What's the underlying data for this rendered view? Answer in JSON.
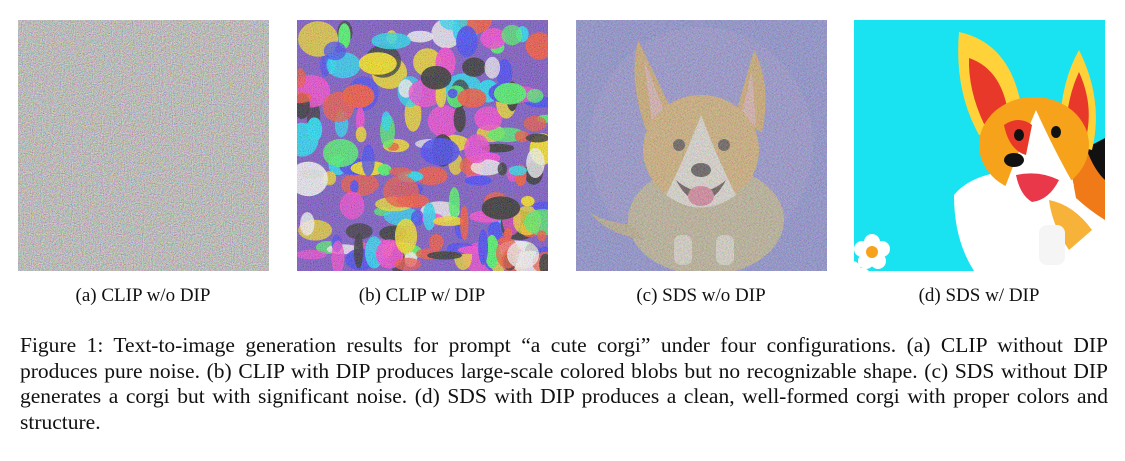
{
  "figure": {
    "panels": [
      {
        "label": "(a) CLIP w/o DIP",
        "image_name": "clip-without-dip-noise-image"
      },
      {
        "label": "(b) CLIP w/ DIP",
        "image_name": "clip-with-dip-blobs-image"
      },
      {
        "label": "(c) SDS w/o DIP",
        "image_name": "sds-without-dip-noisy-corgi-image"
      },
      {
        "label": "(d) SDS w/ DIP",
        "image_name": "sds-with-dip-clean-corgi-image"
      }
    ],
    "caption": "Figure 1: Text-to-image generation results for prompt “a cute corgi” under four configurations. (a) CLIP without DIP produces pure noise. (b) CLIP with DIP produces large-scale colored blobs but no recognizable shape. (c) SDS without DIP generates a corgi but with significant noise. (d) SDS with DIP produces a clean, well-formed corgi with proper colors and structure."
  }
}
